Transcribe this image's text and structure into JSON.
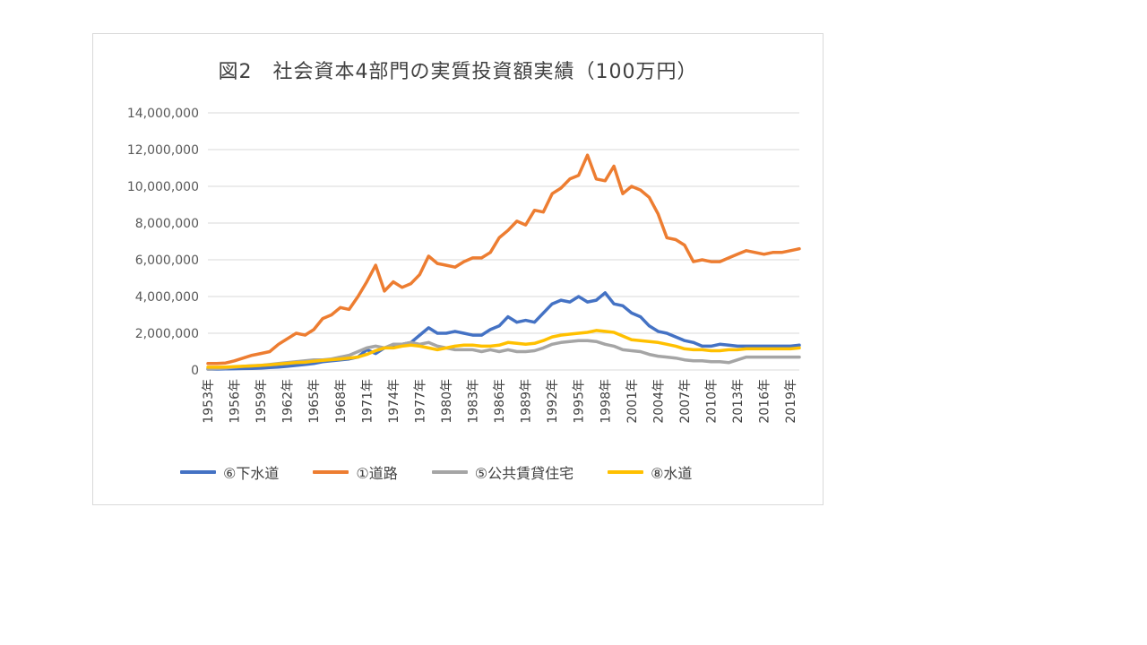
{
  "chart_data": {
    "type": "line",
    "title": "図2　社会資本4部門の実質投資額実績（100万円）",
    "ylim": [
      0,
      14000000
    ],
    "y_ticks": [
      "14,000,000",
      "12,000,000",
      "10,000,000",
      "8,000,000",
      "6,000,000",
      "4,000,000",
      "2,000,000",
      "0"
    ],
    "y_tick_values": [
      14000000,
      12000000,
      10000000,
      8000000,
      6000000,
      4000000,
      2000000,
      0
    ],
    "x": [
      1953,
      1954,
      1955,
      1956,
      1957,
      1958,
      1959,
      1960,
      1961,
      1962,
      1963,
      1964,
      1965,
      1966,
      1967,
      1968,
      1969,
      1970,
      1971,
      1972,
      1973,
      1974,
      1975,
      1976,
      1977,
      1978,
      1979,
      1980,
      1981,
      1982,
      1983,
      1984,
      1985,
      1986,
      1987,
      1988,
      1989,
      1990,
      1991,
      1992,
      1993,
      1994,
      1995,
      1996,
      1997,
      1998,
      1999,
      2000,
      2001,
      2002,
      2003,
      2004,
      2005,
      2006,
      2007,
      2008,
      2009,
      2010,
      2011,
      2012,
      2013,
      2014,
      2015,
      2016,
      2017,
      2018,
      2019,
      2020
    ],
    "x_tick_labels": [
      "1953年",
      "1956年",
      "1959年",
      "1962年",
      "1965年",
      "1968年",
      "1971年",
      "1974年",
      "1977年",
      "1980年",
      "1983年",
      "1986年",
      "1989年",
      "1992年",
      "1995年",
      "1998年",
      "2001年",
      "2004年",
      "2007年",
      "2010年",
      "2013年",
      "2016年",
      "2019年"
    ],
    "x_tick_values": [
      1953,
      1956,
      1959,
      1962,
      1965,
      1968,
      1971,
      1974,
      1977,
      1980,
      1983,
      1986,
      1989,
      1992,
      1995,
      1998,
      2001,
      2004,
      2007,
      2010,
      2013,
      2016,
      2019
    ],
    "legend_position": "bottom",
    "grid": true,
    "series": [
      {
        "name": "⑥下水道",
        "color": "#4472c4",
        "values": [
          50000,
          50000,
          60000,
          70000,
          80000,
          90000,
          100000,
          130000,
          160000,
          200000,
          250000,
          300000,
          350000,
          450000,
          500000,
          550000,
          600000,
          700000,
          1100000,
          900000,
          1200000,
          1300000,
          1400000,
          1500000,
          1900000,
          2300000,
          2000000,
          2000000,
          2100000,
          2000000,
          1900000,
          1900000,
          2200000,
          2400000,
          2900000,
          2600000,
          2700000,
          2600000,
          3100000,
          3600000,
          3800000,
          3700000,
          4000000,
          3700000,
          3800000,
          4200000,
          3600000,
          3500000,
          3100000,
          2900000,
          2400000,
          2100000,
          2000000,
          1800000,
          1600000,
          1500000,
          1300000,
          1300000,
          1400000,
          1350000,
          1300000,
          1300000,
          1300000,
          1300000,
          1300000,
          1300000,
          1300000,
          1350000
        ]
      },
      {
        "name": "①道路",
        "color": "#ed7d31",
        "values": [
          350000,
          350000,
          380000,
          500000,
          650000,
          800000,
          900000,
          1000000,
          1400000,
          1700000,
          2000000,
          1900000,
          2200000,
          2800000,
          3000000,
          3400000,
          3300000,
          4000000,
          4800000,
          5700000,
          4300000,
          4800000,
          4500000,
          4700000,
          5200000,
          6200000,
          5800000,
          5700000,
          5600000,
          5900000,
          6100000,
          6100000,
          6400000,
          7200000,
          7600000,
          8100000,
          7900000,
          8700000,
          8600000,
          9600000,
          9900000,
          10400000,
          10600000,
          11700000,
          10400000,
          10300000,
          11100000,
          9600000,
          10000000,
          9800000,
          9400000,
          8500000,
          7200000,
          7100000,
          6800000,
          5900000,
          6000000,
          5900000,
          5900000,
          6100000,
          6300000,
          6500000,
          6400000,
          6300000,
          6400000,
          6400000,
          6500000,
          6600000
        ]
      },
      {
        "name": "⑤公共賃貸住宅",
        "color": "#a5a5a5",
        "values": [
          50000,
          80000,
          100000,
          150000,
          200000,
          230000,
          250000,
          300000,
          350000,
          400000,
          450000,
          500000,
          550000,
          550000,
          600000,
          700000,
          800000,
          1000000,
          1200000,
          1300000,
          1200000,
          1400000,
          1400000,
          1500000,
          1400000,
          1500000,
          1300000,
          1200000,
          1100000,
          1100000,
          1100000,
          1000000,
          1100000,
          1000000,
          1100000,
          1000000,
          1000000,
          1050000,
          1200000,
          1400000,
          1500000,
          1550000,
          1600000,
          1600000,
          1550000,
          1400000,
          1300000,
          1100000,
          1050000,
          1000000,
          850000,
          750000,
          700000,
          650000,
          550000,
          500000,
          500000,
          450000,
          450000,
          400000,
          550000,
          700000,
          700000,
          700000,
          700000,
          700000,
          700000,
          700000
        ]
      },
      {
        "name": "⑧水道",
        "color": "#ffc000",
        "values": [
          150000,
          150000,
          160000,
          180000,
          200000,
          220000,
          250000,
          280000,
          320000,
          360000,
          400000,
          420000,
          480000,
          520000,
          560000,
          600000,
          650000,
          700000,
          850000,
          1050000,
          1200000,
          1200000,
          1300000,
          1350000,
          1300000,
          1200000,
          1100000,
          1200000,
          1300000,
          1350000,
          1350000,
          1300000,
          1300000,
          1350000,
          1500000,
          1450000,
          1400000,
          1450000,
          1600000,
          1800000,
          1900000,
          1950000,
          2000000,
          2050000,
          2150000,
          2100000,
          2050000,
          1850000,
          1650000,
          1600000,
          1550000,
          1500000,
          1400000,
          1300000,
          1150000,
          1100000,
          1100000,
          1050000,
          1050000,
          1100000,
          1100000,
          1150000,
          1150000,
          1150000,
          1150000,
          1150000,
          1150000,
          1200000
        ]
      }
    ]
  }
}
